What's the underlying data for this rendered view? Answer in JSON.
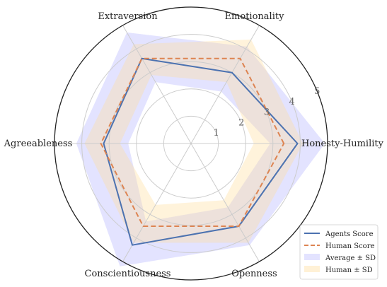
{
  "chart_data": {
    "type": "radar",
    "axes": [
      "Honesty-Humility",
      "Emotionality",
      "Extraversion",
      "Agreeableness",
      "Conscientiousness",
      "Openness"
    ],
    "rlim": [
      0,
      5
    ],
    "rticks": [
      "1",
      "2",
      "3",
      "4",
      "5"
    ],
    "grid": true,
    "legend_position": "bottom-right",
    "series": [
      {
        "name": "Agents Score",
        "values": [
          3.9,
          3.0,
          3.6,
          3.2,
          4.3,
          3.5
        ],
        "style": "solid",
        "color": "#4c72b0"
      },
      {
        "name": "Human Score",
        "values": [
          3.4,
          3.6,
          3.6,
          3.3,
          3.5,
          3.5
        ],
        "style": "dashed",
        "color": "#dd8452"
      }
    ],
    "bands": [
      {
        "name": "Average ± SD",
        "color": "#8080ff",
        "lower": [
          2.9,
          2.2,
          2.6,
          2.3,
          3.3,
          2.7
        ],
        "upper": [
          4.9,
          4.1,
          4.7,
          4.2,
          5.2,
          4.3
        ]
      },
      {
        "name": "Human ± SD",
        "color": "#ffdd99",
        "lower": [
          2.3,
          2.6,
          2.9,
          2.6,
          2.6,
          2.4
        ],
        "upper": [
          4.1,
          4.4,
          4.2,
          3.9,
          4.2,
          4.2
        ]
      }
    ]
  }
}
